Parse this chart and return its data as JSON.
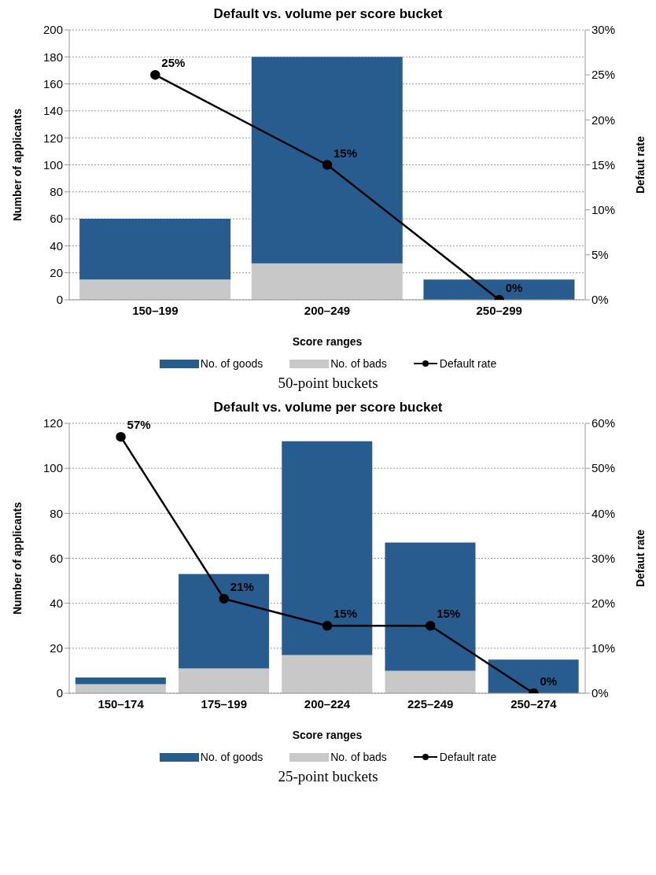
{
  "chart_data": [
    {
      "type": "bar",
      "title": "Default vs. volume per score bucket",
      "xlabel": "Score ranges",
      "ylabel": "Number of applicants",
      "y2label": "Defaut rate",
      "categories": [
        "150–199",
        "200–249",
        "250–299"
      ],
      "stacked": true,
      "series": [
        {
          "name": "No. of bads",
          "color": "#c8c8c8",
          "values": [
            15,
            27,
            0
          ]
        },
        {
          "name": "No. of goods",
          "color": "#285c8f",
          "values": [
            45,
            153,
            15
          ]
        },
        {
          "name": "Default rate",
          "type": "line",
          "axis": "y2",
          "color": "#000000",
          "values": [
            25,
            15,
            0
          ],
          "value_labels": [
            "25%",
            "15%",
            "0%"
          ]
        }
      ],
      "ylim": [
        0,
        200
      ],
      "yticks": [
        0,
        20,
        40,
        60,
        80,
        100,
        120,
        140,
        160,
        180,
        200
      ],
      "y2lim": [
        0,
        30
      ],
      "y2ticks": [
        {
          "value": 0,
          "label": "0%"
        },
        {
          "value": 5,
          "label": "5%"
        },
        {
          "value": 10,
          "label": "10%"
        },
        {
          "value": 15,
          "label": "15%"
        },
        {
          "value": 20,
          "label": "20%"
        },
        {
          "value": 25,
          "label": "25%"
        },
        {
          "value": 30,
          "label": "30%"
        }
      ],
      "grid": "y",
      "legend": "bottom",
      "marker": "circle",
      "line_style": "solid",
      "annotations": [
        "50-point buckets"
      ]
    },
    {
      "type": "bar",
      "title": "Default vs. volume per score bucket",
      "xlabel": "Score ranges",
      "ylabel": "Number of applicants",
      "y2label": "Defaut rate",
      "categories": [
        "150–174",
        "175–199",
        "200–224",
        "225–249",
        "250–274"
      ],
      "stacked": true,
      "series": [
        {
          "name": "No. of bads",
          "color": "#c8c8c8",
          "values": [
            4,
            11,
            17,
            10,
            0
          ]
        },
        {
          "name": "No. of goods",
          "color": "#285c8f",
          "values": [
            3,
            42,
            95,
            57,
            15
          ]
        },
        {
          "name": "Default rate",
          "type": "line",
          "axis": "y2",
          "color": "#000000",
          "values": [
            57,
            21,
            15,
            15,
            0
          ],
          "value_labels": [
            "57%",
            "21%",
            "15%",
            "15%",
            "0%"
          ]
        }
      ],
      "ylim": [
        0,
        120
      ],
      "yticks": [
        0,
        20,
        40,
        60,
        80,
        100,
        120
      ],
      "y2lim": [
        0,
        60
      ],
      "y2ticks": [
        {
          "value": 0,
          "label": "0%"
        },
        {
          "value": 10,
          "label": "10%"
        },
        {
          "value": 20,
          "label": "20%"
        },
        {
          "value": 30,
          "label": "30%"
        },
        {
          "value": 40,
          "label": "40%"
        },
        {
          "value": 50,
          "label": "50%"
        },
        {
          "value": 60,
          "label": "60%"
        }
      ],
      "grid": "y",
      "legend": "bottom",
      "marker": "circle",
      "line_style": "solid",
      "annotations": [
        "25-point buckets"
      ]
    }
  ]
}
